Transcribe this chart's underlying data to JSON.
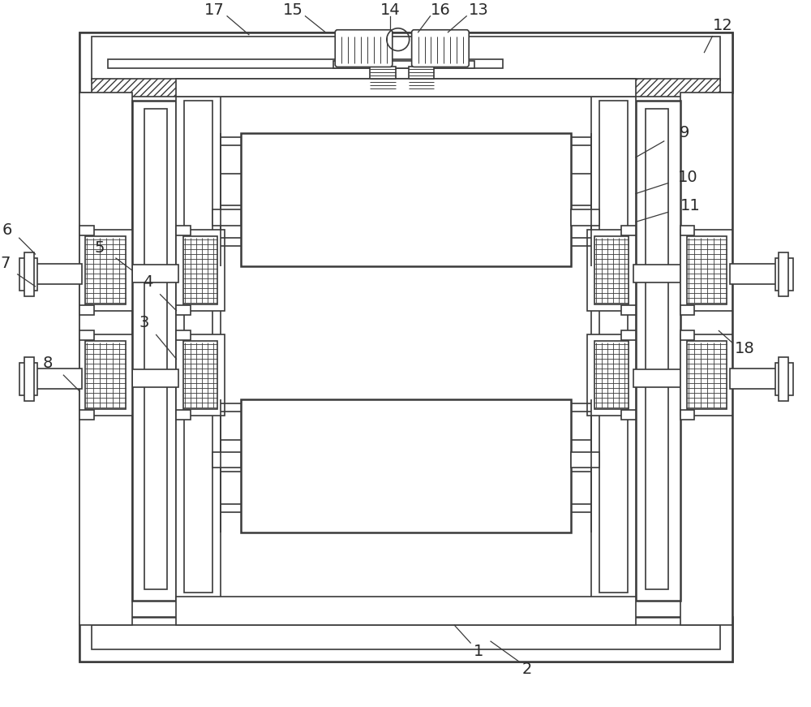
{
  "bg_color": "#ffffff",
  "line_color": "#3a3a3a",
  "label_color": "#2a2a2a",
  "fig_width": 10.0,
  "fig_height": 8.71
}
